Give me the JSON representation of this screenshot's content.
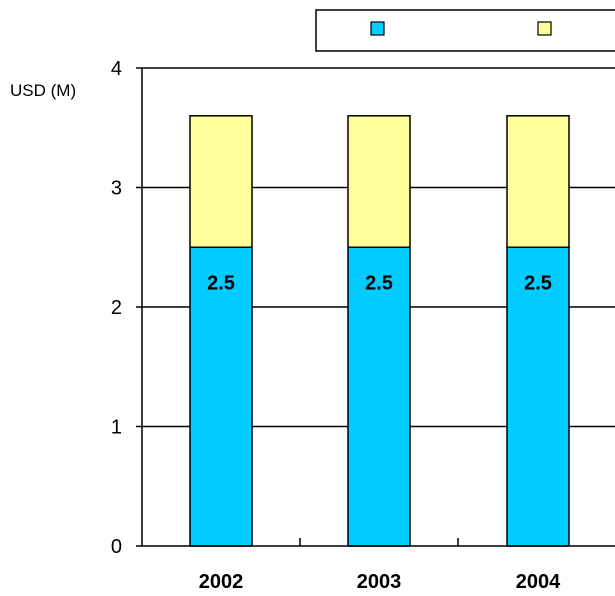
{
  "chart_data": {
    "type": "bar",
    "stacked": true,
    "categories": [
      "2002",
      "2003",
      "2004"
    ],
    "series": [
      {
        "values": [
          2.5,
          2.5,
          2.5
        ],
        "color": "#00CCFF",
        "data_labels": [
          "2.5",
          "2.5",
          "2.5"
        ]
      },
      {
        "values": [
          1.1,
          1.1,
          1.1
        ],
        "color": "#FFFF99"
      }
    ],
    "ylabel": "USD (M)",
    "ylim": [
      0,
      4
    ],
    "yticks": [
      "0",
      "1",
      "2",
      "3",
      "4"
    ],
    "grid": true,
    "legend": "top-right"
  }
}
